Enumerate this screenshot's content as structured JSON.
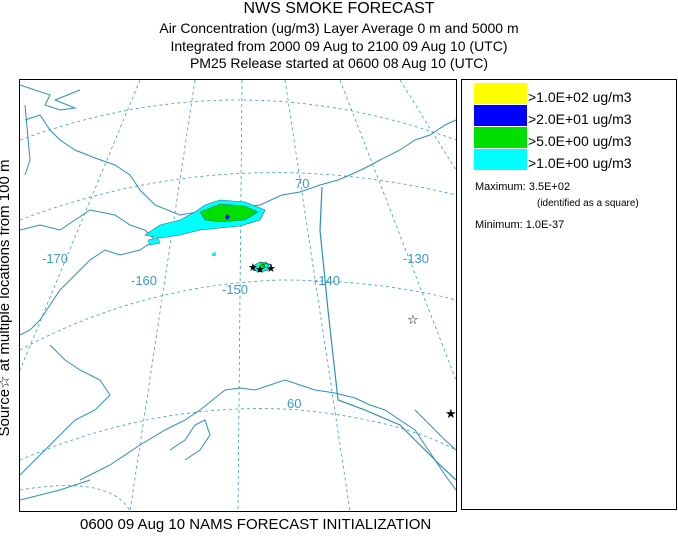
{
  "header": {
    "title": "NWS SMOKE FORECAST",
    "line1": "Air Concentration (ug/m3) Layer Average    0 m and  5000 m",
    "line2": "Integrated from 2000 09 Aug to 2100 09 Aug 10 (UTC)",
    "line3": "PM25 Release started at 0600 08 Aug 10 (UTC)"
  },
  "side_label": "Source☆ at multiple locations    from   100 m",
  "map": {
    "lon_labels": [
      "-170",
      "-160",
      "-150",
      "-140",
      "-130"
    ],
    "lat_labels": [
      "70",
      "60"
    ],
    "colors": {
      "line": "#2b8fc4",
      "grid": "#3a9bd0",
      "high": "#ffff00",
      "mid2": "#0000ff",
      "mid1": "#00e000",
      "low": "#00ffff"
    }
  },
  "legend": {
    "items": [
      {
        "label": ">1.0E+02 ug/m3",
        "color": "#ffff00"
      },
      {
        "label": ">2.0E+01 ug/m3",
        "color": "#0000ff"
      },
      {
        "label": ">5.0E+00 ug/m3",
        "color": "#00e000"
      },
      {
        "label": ">1.0E+00 ug/m3",
        "color": "#00ffff"
      }
    ],
    "maximum": "Maximum: 3.5E+02",
    "maximum_note": "(identified as a square)",
    "minimum": "Minimum: 1.0E-37"
  },
  "footer": "0600 09 Aug 10 NAMS FORECAST INITIALIZATION"
}
